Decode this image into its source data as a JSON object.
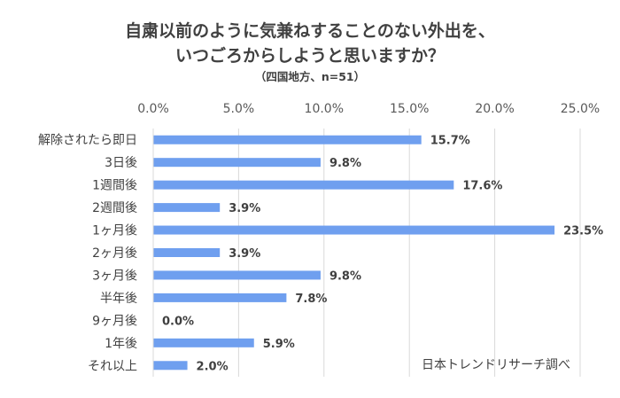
{
  "chart_data": {
    "type": "bar",
    "orientation": "horizontal",
    "title_lines": [
      "自粛以前のように気兼ねすることのない外出を、",
      "いつごろからしようと思いますか？"
    ],
    "subtitle": "（四国地方、n=51）",
    "categories": [
      "解除されたら即日",
      "3日後",
      "1週間後",
      "2週間後",
      "1ヶ月後",
      "2ヶ月後",
      "3ヶ月後",
      "半年後",
      "9ヶ月後",
      "1年後",
      "それ以上"
    ],
    "values": [
      15.7,
      9.8,
      17.6,
      3.9,
      23.5,
      3.9,
      9.8,
      7.8,
      0.0,
      5.9,
      2.0
    ],
    "value_labels": [
      "15.7%",
      "9.8%",
      "17.6%",
      "3.9%",
      "23.5%",
      "3.9%",
      "9.8%",
      "7.8%",
      "0.0%",
      "5.9%",
      "2.0%"
    ],
    "x_ticks": [
      "0.0%",
      "5.0%",
      "10.0%",
      "15.0%",
      "20.0%",
      "25.0%"
    ],
    "xlim": [
      0,
      25
    ],
    "grid": true,
    "bar_color": "#6F9FEF",
    "source": "日本トレンドリサーチ調べ"
  }
}
